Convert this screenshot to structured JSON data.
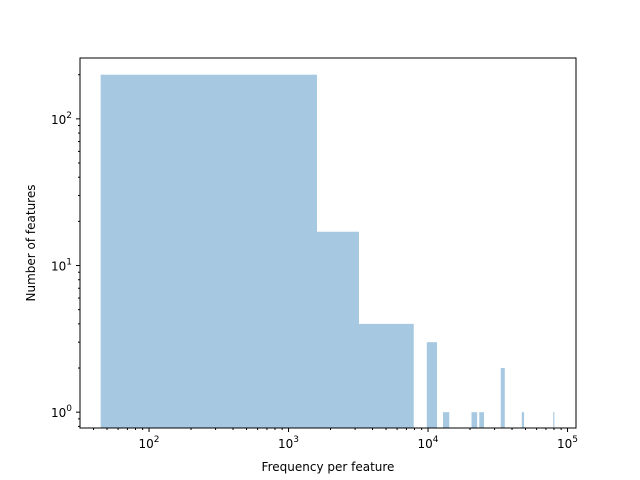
{
  "chart_data": {
    "type": "bar",
    "title": "",
    "xlabel": "Frequency per feature",
    "ylabel": "Number of features",
    "x_scale": "log",
    "y_scale": "log",
    "xlim": [
      32,
      115000
    ],
    "ylim": [
      0.78,
      260
    ],
    "bar_color": "#a6c8e0",
    "x_ticks": [
      {
        "value": 100,
        "base": "10",
        "exp": "2"
      },
      {
        "value": 1000,
        "base": "10",
        "exp": "3"
      },
      {
        "value": 10000,
        "base": "10",
        "exp": "4"
      },
      {
        "value": 100000,
        "base": "10",
        "exp": "5"
      }
    ],
    "y_ticks": [
      {
        "value": 1,
        "base": "10",
        "exp": "0"
      },
      {
        "value": 10,
        "base": "10",
        "exp": "1"
      },
      {
        "value": 100,
        "base": "10",
        "exp": "2"
      }
    ],
    "bins": [
      {
        "x0": 45,
        "x1": 1600,
        "count": 200
      },
      {
        "x0": 1600,
        "x1": 3200,
        "count": 17
      },
      {
        "x0": 3200,
        "x1": 7900,
        "count": 4
      },
      {
        "x0": 9800,
        "x1": 11600,
        "count": 3
      },
      {
        "x0": 12800,
        "x1": 14200,
        "count": 1
      },
      {
        "x0": 20500,
        "x1": 22500,
        "count": 1
      },
      {
        "x0": 23300,
        "x1": 25200,
        "count": 1
      },
      {
        "x0": 33200,
        "x1": 35500,
        "count": 2
      },
      {
        "x0": 47000,
        "x1": 48800,
        "count": 1
      },
      {
        "x0": 79000,
        "x1": 80500,
        "count": 1
      }
    ]
  }
}
